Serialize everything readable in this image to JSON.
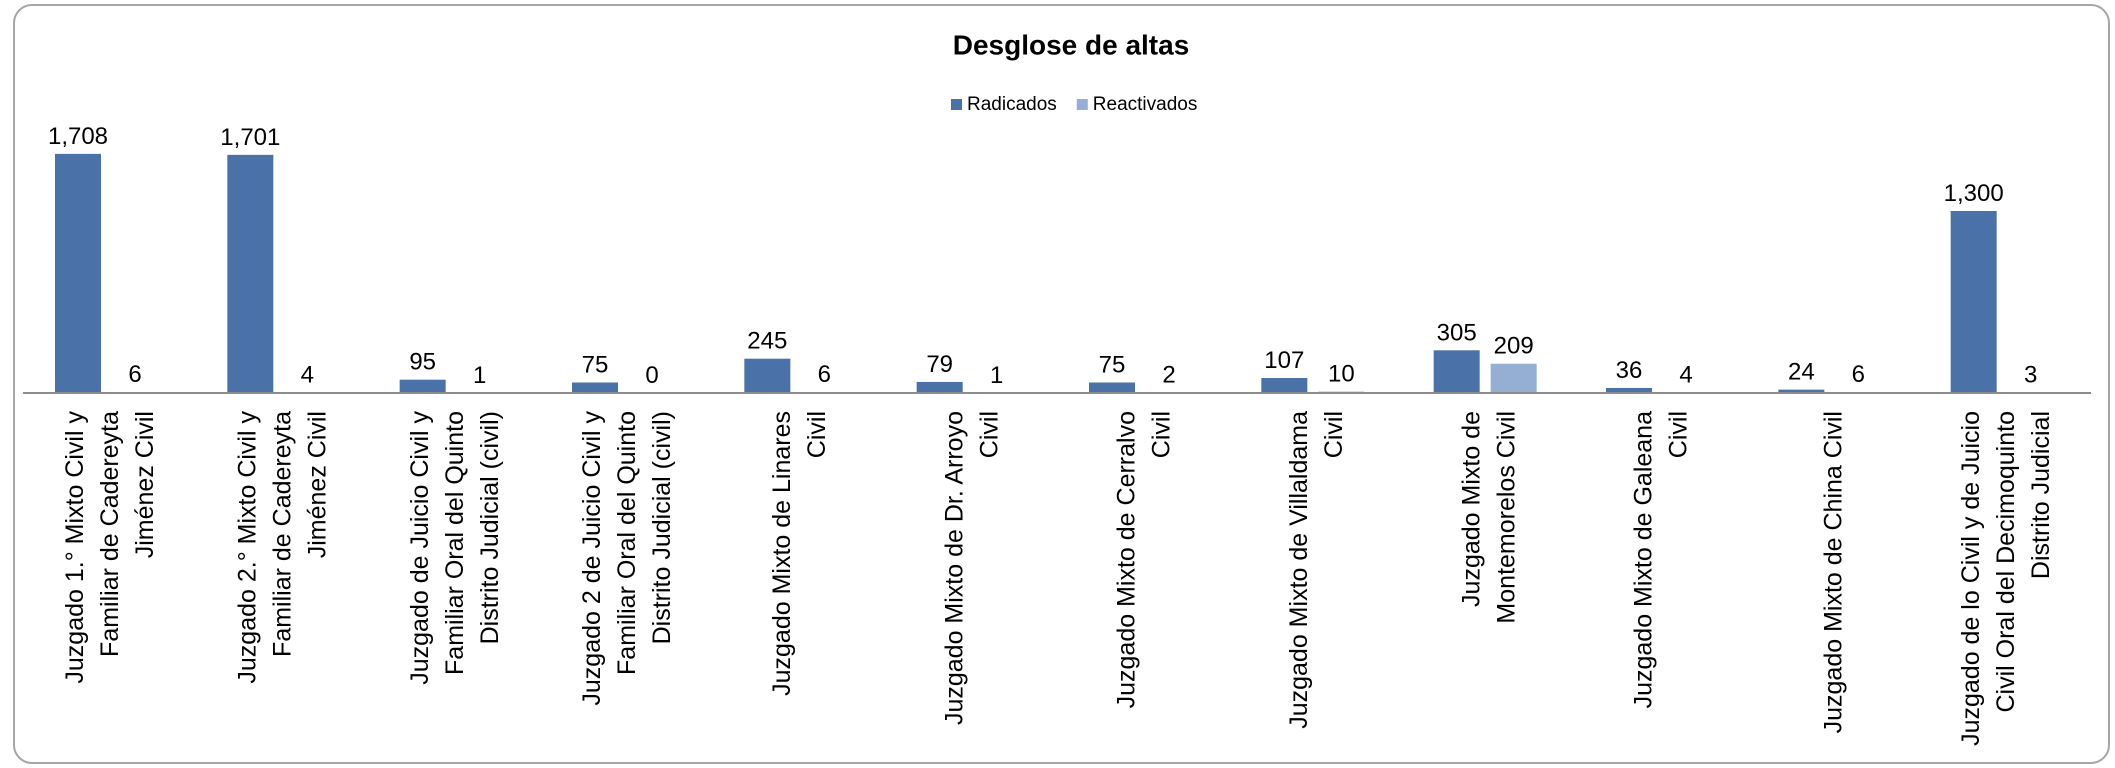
{
  "chart_data": {
    "type": "bar",
    "title": "Desglose  de altas",
    "categories": [
      [
        "Juzgado 1.° Mixto Civil y",
        "Familiar de Cadereyta",
        "Jiménez Civil"
      ],
      [
        "Juzgado 2.° Mixto Civil y",
        "Familiar de Cadereyta",
        "Jiménez Civil"
      ],
      [
        "Juzgado de Juicio Civil y",
        "Familiar Oral del  Quinto",
        "Distrito Judicial (civil)"
      ],
      [
        "Juzgado 2 de Juicio Civil y",
        "Familiar Oral del  Quinto",
        "Distrito Judicial (civil)"
      ],
      [
        "Juzgado Mixto de Linares",
        "Civil"
      ],
      [
        "Juzgado Mixto de Dr. Arroyo",
        "Civil"
      ],
      [
        "Juzgado Mixto de Cerralvo",
        "Civil"
      ],
      [
        "Juzgado Mixto de Villaldama",
        "Civil"
      ],
      [
        "Juzgado Mixto de",
        "Montemorelos Civil"
      ],
      [
        "Juzgado Mixto de Galeana",
        "Civil"
      ],
      [
        "Juzgado Mixto de China Civil"
      ],
      [
        "Juzgado de lo Civil y de Juicio",
        "Civil Oral del Decimoquinto",
        "Distrito Judicial"
      ]
    ],
    "series": [
      {
        "name": "Radicados",
        "color": "#4a72a8",
        "values": [
          1708,
          1701,
          95,
          75,
          245,
          79,
          75,
          107,
          305,
          36,
          24,
          1300
        ],
        "value_labels": [
          "1,708",
          "1,701",
          "95",
          "75",
          "245",
          "79",
          "75",
          "107",
          "305",
          "36",
          "24",
          "1,300"
        ]
      },
      {
        "name": "Reactivados",
        "color": "#95aed3",
        "values": [
          6,
          4,
          1,
          0,
          6,
          1,
          2,
          10,
          209,
          4,
          6,
          3
        ]
      }
    ],
    "ylim": [
      0,
      2000
    ],
    "legend": "top"
  }
}
